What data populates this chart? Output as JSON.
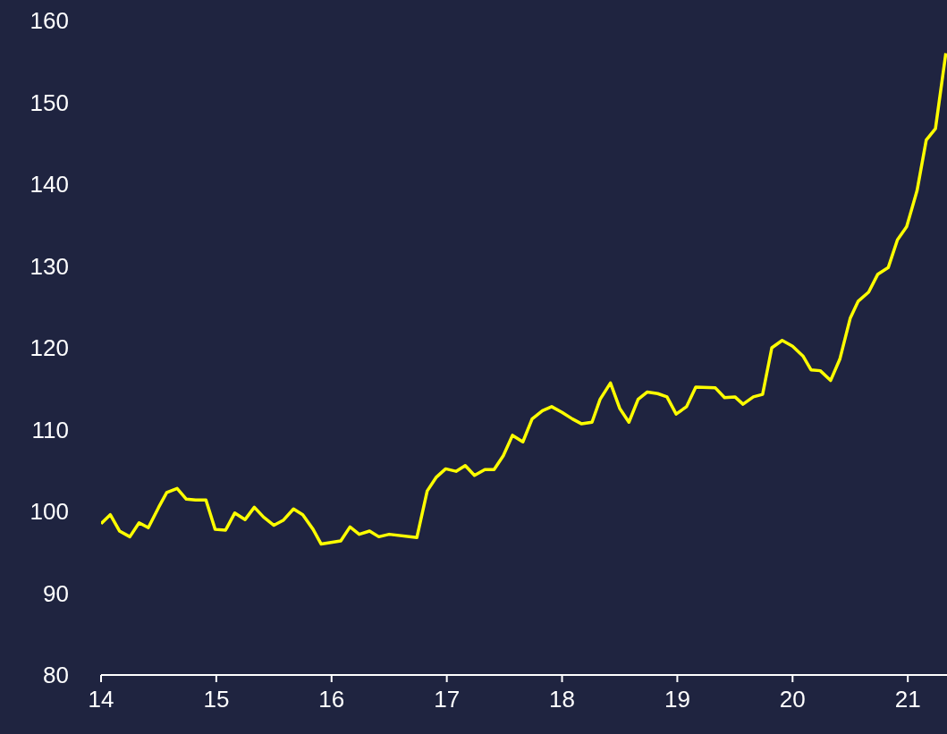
{
  "chart_data": {
    "type": "line",
    "x": [
      14.0,
      14.08,
      14.16,
      14.25,
      14.33,
      14.41,
      14.5,
      14.57,
      14.66,
      14.74,
      14.82,
      14.91,
      14.99,
      15.08,
      15.16,
      15.25,
      15.33,
      15.41,
      15.5,
      15.58,
      15.67,
      15.75,
      15.84,
      15.91,
      16.08,
      16.16,
      16.24,
      16.33,
      16.41,
      16.5,
      16.74,
      16.83,
      16.91,
      16.99,
      17.08,
      17.16,
      17.24,
      17.33,
      17.41,
      17.49,
      17.57,
      17.66,
      17.74,
      17.83,
      17.91,
      18.0,
      18.09,
      18.17,
      18.26,
      18.33,
      18.42,
      18.5,
      18.58,
      18.66,
      18.74,
      18.83,
      18.91,
      18.99,
      19.08,
      19.16,
      19.33,
      19.41,
      19.5,
      19.57,
      19.66,
      19.74,
      19.82,
      19.91,
      20.0,
      20.09,
      20.16,
      20.24,
      20.33,
      20.41,
      20.5,
      20.57,
      20.66,
      20.74,
      20.83,
      20.91,
      20.99,
      21.08,
      21.16,
      21.24,
      21.33
    ],
    "series": [
      {
        "color": "#ffff00",
        "values": [
          98.5,
          99.6,
          97.6,
          96.9,
          98.6,
          98.0,
          100.5,
          102.3,
          102.8,
          101.5,
          101.4,
          101.4,
          97.8,
          97.7,
          99.8,
          99.0,
          100.5,
          99.3,
          98.3,
          98.9,
          100.3,
          99.6,
          97.8,
          96.0,
          96.4,
          98.1,
          97.2,
          97.6,
          96.9,
          97.2,
          96.8,
          102.5,
          104.2,
          105.2,
          104.9,
          105.6,
          104.4,
          105.1,
          105.1,
          106.8,
          109.3,
          108.5,
          111.3,
          112.3,
          112.8,
          112.1,
          111.3,
          110.7,
          110.9,
          113.7,
          115.7,
          112.6,
          110.9,
          113.7,
          114.6,
          114.4,
          114.0,
          111.9,
          112.8,
          115.2,
          115.1,
          113.9,
          114.0,
          113.1,
          114.0,
          114.3,
          120.0,
          120.9,
          120.2,
          119.0,
          117.3,
          117.2,
          116.0,
          118.6,
          123.6,
          125.7,
          126.8,
          129.0,
          129.8,
          133.2,
          134.8,
          139.2,
          145.4,
          146.8,
          156.0
        ]
      }
    ],
    "xlim": [
      14,
      21.34
    ],
    "xticks": [
      14,
      15,
      16,
      17,
      18,
      19,
      20,
      21
    ],
    "ylim": [
      80,
      160
    ],
    "yticks": [
      80,
      90,
      100,
      110,
      120,
      130,
      140,
      150,
      160
    ],
    "grid": false,
    "legend": false,
    "marker": "none",
    "line_style": "solid"
  }
}
